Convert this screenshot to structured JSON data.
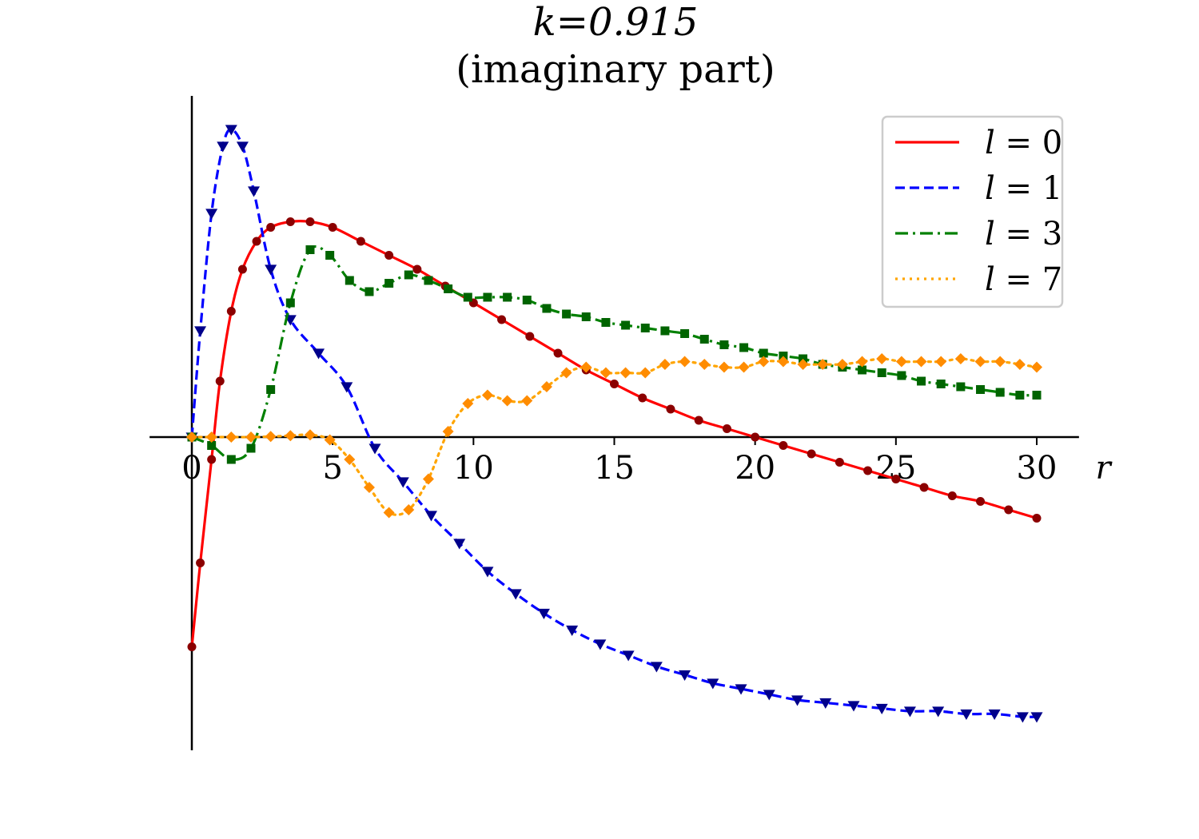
{
  "chart_data": {
    "type": "line",
    "title": "k=0.915",
    "subtitle": "(imaginary part)",
    "xlabel": "r",
    "ylabel": "",
    "xlim": [
      -1.5,
      31.5
    ],
    "ylim": [
      -1.12,
      1.22
    ],
    "x_ticks": [
      0,
      5,
      10,
      15,
      20,
      25,
      30
    ],
    "x_tick_labels": [
      "0",
      "5",
      "10",
      "15",
      "20",
      "25",
      "30"
    ],
    "y_ticks_visible": false,
    "grid": false,
    "legend": {
      "position": "top-right"
    },
    "series": [
      {
        "name": "l=0",
        "legend_label": "l = 0",
        "color": "#ff0000",
        "marker_color": "#8b0000",
        "marker": "circle",
        "linestyle": "solid",
        "points": [
          [
            0,
            -0.75
          ],
          [
            0.3,
            -0.45
          ],
          [
            0.7,
            -0.08
          ],
          [
            1.0,
            0.2
          ],
          [
            1.4,
            0.45
          ],
          [
            1.8,
            0.6
          ],
          [
            2.3,
            0.7
          ],
          [
            2.8,
            0.75
          ],
          [
            3.5,
            0.77
          ],
          [
            4.2,
            0.77
          ],
          [
            5.0,
            0.75
          ],
          [
            6.0,
            0.7
          ],
          [
            7.0,
            0.65
          ],
          [
            8.0,
            0.6
          ],
          [
            9.0,
            0.54
          ],
          [
            10.0,
            0.48
          ],
          [
            11.0,
            0.42
          ],
          [
            12.0,
            0.36
          ],
          [
            13.0,
            0.3
          ],
          [
            14.0,
            0.24
          ],
          [
            15.0,
            0.19
          ],
          [
            16.0,
            0.14
          ],
          [
            17.0,
            0.1
          ],
          [
            18.0,
            0.06
          ],
          [
            19.0,
            0.03
          ],
          [
            20.0,
            0.0
          ],
          [
            21.0,
            -0.03
          ],
          [
            22.0,
            -0.06
          ],
          [
            23.0,
            -0.09
          ],
          [
            24.0,
            -0.12
          ],
          [
            25.0,
            -0.15
          ],
          [
            26.0,
            -0.18
          ],
          [
            27.0,
            -0.21
          ],
          [
            28.0,
            -0.23
          ],
          [
            29.0,
            -0.26
          ],
          [
            30.0,
            -0.29
          ]
        ]
      },
      {
        "name": "l=1",
        "legend_label": "l = 1",
        "color": "#0000ff",
        "marker_color": "#00008b",
        "marker": "triangle-down",
        "linestyle": "dashed",
        "points": [
          [
            0,
            0
          ],
          [
            0.3,
            0.38
          ],
          [
            0.7,
            0.8
          ],
          [
            1.1,
            1.04
          ],
          [
            1.4,
            1.1
          ],
          [
            1.8,
            1.04
          ],
          [
            2.2,
            0.88
          ],
          [
            2.8,
            0.6
          ],
          [
            3.5,
            0.42
          ],
          [
            4.5,
            0.3
          ],
          [
            5.5,
            0.18
          ],
          [
            6.5,
            -0.04
          ],
          [
            7.5,
            -0.16
          ],
          [
            8.5,
            -0.28
          ],
          [
            9.5,
            -0.38
          ],
          [
            10.5,
            -0.48
          ],
          [
            11.5,
            -0.56
          ],
          [
            12.5,
            -0.63
          ],
          [
            13.5,
            -0.69
          ],
          [
            14.5,
            -0.74
          ],
          [
            15.5,
            -0.78
          ],
          [
            16.5,
            -0.82
          ],
          [
            17.5,
            -0.85
          ],
          [
            18.5,
            -0.88
          ],
          [
            19.5,
            -0.9
          ],
          [
            20.5,
            -0.92
          ],
          [
            21.5,
            -0.94
          ],
          [
            22.5,
            -0.95
          ],
          [
            23.5,
            -0.96
          ],
          [
            24.5,
            -0.97
          ],
          [
            25.5,
            -0.98
          ],
          [
            26.5,
            -0.98
          ],
          [
            27.5,
            -0.99
          ],
          [
            28.5,
            -0.99
          ],
          [
            29.5,
            -1.0
          ],
          [
            30.0,
            -1.0
          ]
        ]
      },
      {
        "name": "l=3",
        "legend_label": "l = 3",
        "color": "#008000",
        "marker_color": "#006400",
        "marker": "square",
        "linestyle": "dashdot",
        "points": [
          [
            0,
            0
          ],
          [
            0.7,
            -0.03
          ],
          [
            1.4,
            -0.08
          ],
          [
            2.1,
            -0.04
          ],
          [
            2.8,
            0.17
          ],
          [
            3.5,
            0.48
          ],
          [
            4.2,
            0.67
          ],
          [
            4.9,
            0.65
          ],
          [
            5.6,
            0.56
          ],
          [
            6.3,
            0.52
          ],
          [
            7.0,
            0.55
          ],
          [
            7.7,
            0.58
          ],
          [
            8.4,
            0.56
          ],
          [
            9.1,
            0.53
          ],
          [
            9.8,
            0.5
          ],
          [
            10.5,
            0.5
          ],
          [
            11.2,
            0.5
          ],
          [
            11.9,
            0.49
          ],
          [
            12.6,
            0.46
          ],
          [
            13.3,
            0.44
          ],
          [
            14.0,
            0.43
          ],
          [
            14.7,
            0.41
          ],
          [
            15.4,
            0.4
          ],
          [
            16.1,
            0.39
          ],
          [
            16.8,
            0.38
          ],
          [
            17.5,
            0.37
          ],
          [
            18.2,
            0.35
          ],
          [
            18.9,
            0.33
          ],
          [
            19.6,
            0.32
          ],
          [
            20.3,
            0.3
          ],
          [
            21.0,
            0.29
          ],
          [
            21.7,
            0.28
          ],
          [
            22.4,
            0.26
          ],
          [
            23.1,
            0.25
          ],
          [
            23.8,
            0.24
          ],
          [
            24.5,
            0.23
          ],
          [
            25.2,
            0.22
          ],
          [
            25.9,
            0.2
          ],
          [
            26.6,
            0.19
          ],
          [
            27.3,
            0.18
          ],
          [
            28.0,
            0.17
          ],
          [
            28.7,
            0.16
          ],
          [
            29.4,
            0.15
          ],
          [
            30.0,
            0.15
          ]
        ]
      },
      {
        "name": "l=7",
        "legend_label": "l = 7",
        "color": "#ffa500",
        "marker_color": "#ff8c00",
        "marker": "diamond",
        "linestyle": "dotted",
        "points": [
          [
            0,
            0
          ],
          [
            0.7,
            0
          ],
          [
            1.4,
            0
          ],
          [
            2.1,
            0
          ],
          [
            2.8,
            0.002
          ],
          [
            3.5,
            0.005
          ],
          [
            4.2,
            0.008
          ],
          [
            4.9,
            -0.01
          ],
          [
            5.6,
            -0.08
          ],
          [
            6.3,
            -0.18
          ],
          [
            7.0,
            -0.27
          ],
          [
            7.7,
            -0.26
          ],
          [
            8.4,
            -0.15
          ],
          [
            9.1,
            0.02
          ],
          [
            9.8,
            0.12
          ],
          [
            10.5,
            0.15
          ],
          [
            11.2,
            0.13
          ],
          [
            11.9,
            0.13
          ],
          [
            12.6,
            0.18
          ],
          [
            13.3,
            0.23
          ],
          [
            14.0,
            0.25
          ],
          [
            14.7,
            0.23
          ],
          [
            15.4,
            0.23
          ],
          [
            16.1,
            0.23
          ],
          [
            16.8,
            0.26
          ],
          [
            17.5,
            0.27
          ],
          [
            18.2,
            0.26
          ],
          [
            18.9,
            0.25
          ],
          [
            19.6,
            0.25
          ],
          [
            20.3,
            0.27
          ],
          [
            21.0,
            0.27
          ],
          [
            21.7,
            0.26
          ],
          [
            22.4,
            0.26
          ],
          [
            23.1,
            0.26
          ],
          [
            23.8,
            0.27
          ],
          [
            24.5,
            0.28
          ],
          [
            25.2,
            0.27
          ],
          [
            25.9,
            0.27
          ],
          [
            26.6,
            0.27
          ],
          [
            27.3,
            0.28
          ],
          [
            28.0,
            0.27
          ],
          [
            28.7,
            0.27
          ],
          [
            29.4,
            0.26
          ],
          [
            30.0,
            0.25
          ]
        ]
      }
    ]
  }
}
